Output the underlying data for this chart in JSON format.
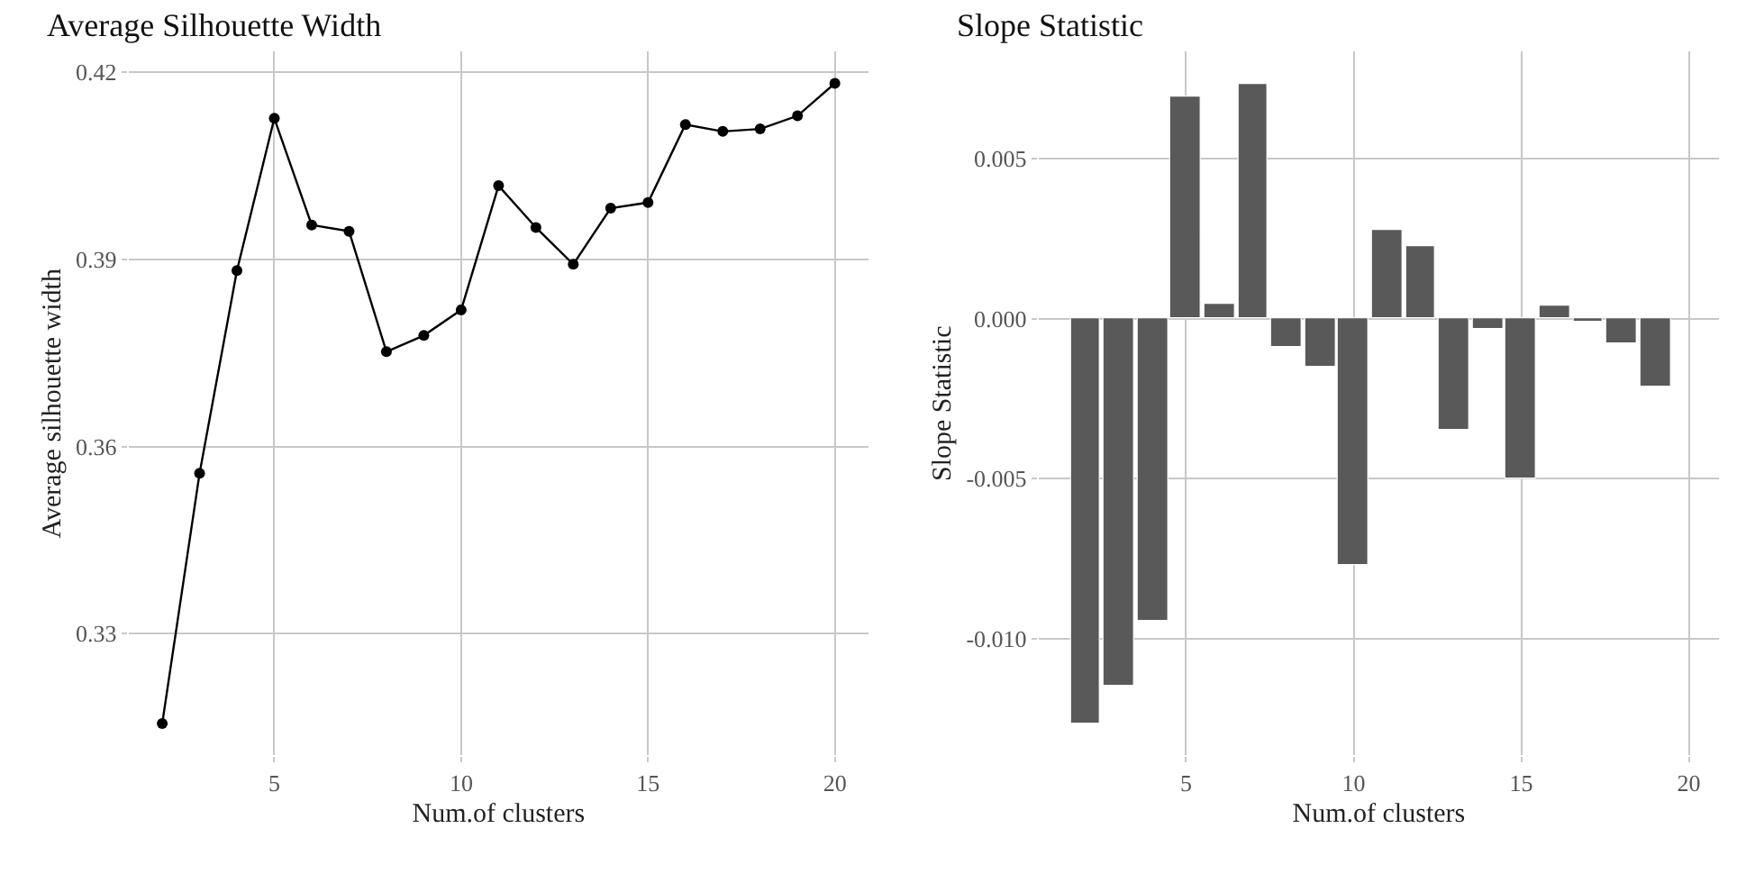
{
  "chart_data": [
    {
      "type": "line",
      "title": "Average Silhouette Width",
      "xlabel": "Num.of clusters",
      "ylabel": "Average silhouette width",
      "x": [
        2,
        3,
        4,
        5,
        6,
        7,
        8,
        9,
        10,
        11,
        12,
        13,
        14,
        15,
        16,
        17,
        18,
        19,
        20
      ],
      "series": [
        {
          "color": "#000000",
          "values": [
            0.3156,
            0.3557,
            0.3882,
            0.4126,
            0.3955,
            0.3945,
            0.3752,
            0.3778,
            0.3819,
            0.4018,
            0.3951,
            0.3892,
            0.3982,
            0.3991,
            0.4116,
            0.4105,
            0.4109,
            0.413,
            0.4182
          ]
        }
      ],
      "marker": "circle",
      "xlim": [
        1.1,
        20.9
      ],
      "ylim": [
        0.3105,
        0.4233
      ],
      "xticks": [
        5,
        10,
        15,
        20
      ],
      "yticks": [
        0.33,
        0.36,
        0.39,
        0.42
      ],
      "grid": true
    },
    {
      "type": "bar",
      "title": "Slope Statistic",
      "xlabel": "Num.of clusters",
      "ylabel": "Slope Statistic",
      "x": [
        2,
        3,
        4,
        5,
        6,
        7,
        8,
        9,
        10,
        11,
        12,
        13,
        14,
        15,
        16,
        17,
        18,
        19
      ],
      "series": [
        {
          "color": "#595959",
          "values": [
            -0.01264,
            -0.01148,
            -0.00944,
            0.00695,
            0.00048,
            0.00734,
            -0.00087,
            -0.00148,
            -0.00767,
            0.00279,
            0.00224,
            -0.00346,
            -0.00033,
            -0.00497,
            0.00041,
            -0.00011,
            -0.00079,
            -0.00214
          ]
        }
      ],
      "xlim": [
        0.6,
        20.9
      ],
      "ylim": [
        -0.01364,
        0.00834
      ],
      "xticks": [
        5,
        10,
        15,
        20
      ],
      "yticks": [
        {
          "value": -0.01,
          "label": "-0.010"
        },
        {
          "value": -0.005,
          "label": "-0.005"
        },
        {
          "value": 0,
          "label": "0.000"
        },
        0.005
      ],
      "grid": true
    }
  ]
}
